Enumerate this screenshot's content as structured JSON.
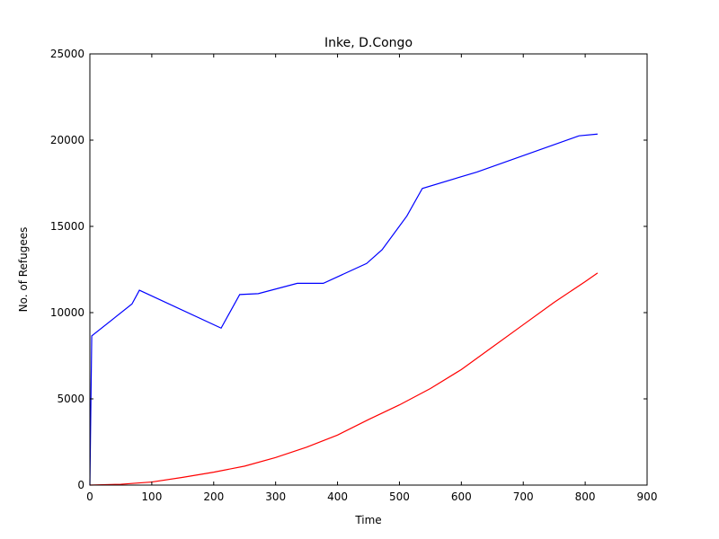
{
  "chart_data": {
    "type": "line",
    "title": "Inke, D.Congo",
    "xlabel": "Time",
    "ylabel": "No. of Refugees",
    "xlim": [
      0,
      900
    ],
    "ylim": [
      0,
      25000
    ],
    "xticks": [
      0,
      100,
      200,
      300,
      400,
      500,
      600,
      700,
      800,
      900
    ],
    "yticks": [
      0,
      5000,
      10000,
      15000,
      20000,
      25000
    ],
    "grid": false,
    "legend": "none",
    "series": [
      {
        "color": "#0000ff",
        "x": [
          0,
          3,
          68,
          80,
          212,
          242,
          272,
          335,
          377,
          447,
          472,
          512,
          537,
          625,
          790,
          820
        ],
        "y": [
          0,
          8650,
          10500,
          11300,
          9100,
          11050,
          11100,
          11700,
          11700,
          12850,
          13650,
          15600,
          17200,
          18150,
          20250,
          20350
        ]
      },
      {
        "color": "#ff0000",
        "x": [
          0,
          50,
          100,
          150,
          200,
          250,
          300,
          350,
          400,
          450,
          500,
          550,
          600,
          650,
          700,
          750,
          800,
          820
        ],
        "y": [
          0,
          50,
          180,
          450,
          750,
          1100,
          1600,
          2200,
          2900,
          3800,
          4650,
          5600,
          6700,
          8000,
          9300,
          10600,
          11800,
          12300
        ]
      }
    ]
  }
}
